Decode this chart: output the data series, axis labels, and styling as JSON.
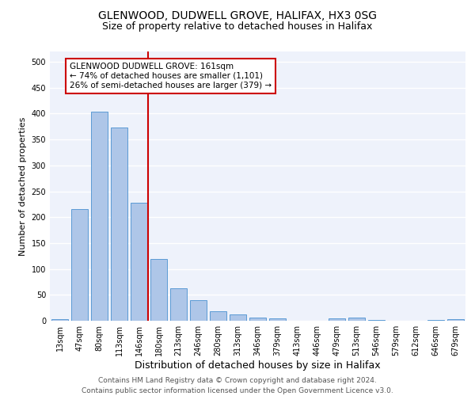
{
  "title1": "GLENWOOD, DUDWELL GROVE, HALIFAX, HX3 0SG",
  "title2": "Size of property relative to detached houses in Halifax",
  "xlabel": "Distribution of detached houses by size in Halifax",
  "ylabel": "Number of detached properties",
  "categories": [
    "13sqm",
    "47sqm",
    "80sqm",
    "113sqm",
    "146sqm",
    "180sqm",
    "213sqm",
    "246sqm",
    "280sqm",
    "313sqm",
    "346sqm",
    "379sqm",
    "413sqm",
    "446sqm",
    "479sqm",
    "513sqm",
    "546sqm",
    "579sqm",
    "612sqm",
    "646sqm",
    "679sqm"
  ],
  "values": [
    3,
    215,
    403,
    373,
    228,
    120,
    63,
    40,
    18,
    13,
    6,
    5,
    0,
    0,
    5,
    6,
    1,
    0,
    0,
    1,
    3
  ],
  "bar_color": "#aec6e8",
  "bar_edge_color": "#5b9bd5",
  "property_line_color": "#cc0000",
  "annotation_text": "GLENWOOD DUDWELL GROVE: 161sqm\n← 74% of detached houses are smaller (1,101)\n26% of semi-detached houses are larger (379) →",
  "annotation_box_color": "#ffffff",
  "annotation_box_edge": "#cc0000",
  "ylim": [
    0,
    520
  ],
  "yticks": [
    0,
    50,
    100,
    150,
    200,
    250,
    300,
    350,
    400,
    450,
    500
  ],
  "background_color": "#eef2fb",
  "grid_color": "#ffffff",
  "footer": "Contains HM Land Registry data © Crown copyright and database right 2024.\nContains public sector information licensed under the Open Government Licence v3.0.",
  "title1_fontsize": 10,
  "title2_fontsize": 9,
  "xlabel_fontsize": 9,
  "ylabel_fontsize": 8,
  "tick_fontsize": 7,
  "annotation_fontsize": 7.5,
  "footer_fontsize": 6.5
}
